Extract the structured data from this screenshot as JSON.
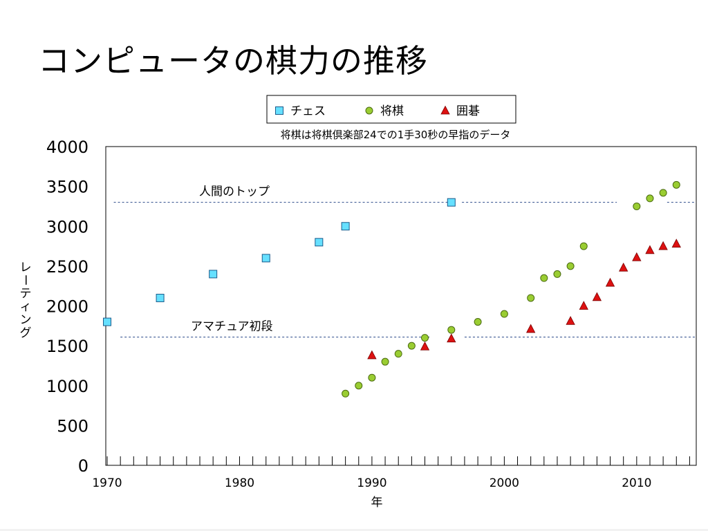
{
  "page": {
    "title": "コンピュータの棋力の推移"
  },
  "chart_data": {
    "type": "scatter",
    "subtitle": "将棋は将棋倶楽部24での1手30秒の早指のデータ",
    "xlabel": "年",
    "ylabel": "レーティング",
    "xlim": [
      1970,
      2014.5
    ],
    "ylim": [
      0,
      4000
    ],
    "yticks": [
      0,
      500,
      1000,
      1500,
      2000,
      2500,
      3000,
      3500,
      4000
    ],
    "ytick_labels": [
      "0",
      "500",
      "1000",
      "1500",
      "2000",
      "2500",
      "3000",
      "3500",
      "4000"
    ],
    "xtick_labels": [
      {
        "value": 1970,
        "label": "1970"
      },
      {
        "value": 1980,
        "label": "1980"
      },
      {
        "value": 1990,
        "label": "1990"
      },
      {
        "value": 2000,
        "label": "2000"
      },
      {
        "value": 2010,
        "label": "2010"
      }
    ],
    "legend_position": "top-center",
    "grid": false,
    "series": [
      {
        "name": "チェス",
        "marker": "square",
        "color": "#66e0ff",
        "points": [
          [
            1970,
            1800
          ],
          [
            1974,
            2100
          ],
          [
            1978,
            2400
          ],
          [
            1982,
            2600
          ],
          [
            1986,
            2800
          ],
          [
            1988,
            3000
          ],
          [
            1996,
            3300
          ]
        ]
      },
      {
        "name": "将棋",
        "marker": "circle",
        "color": "#9acd32",
        "points": [
          [
            1988,
            900
          ],
          [
            1989,
            1000
          ],
          [
            1990,
            1100
          ],
          [
            1991,
            1300
          ],
          [
            1992,
            1400
          ],
          [
            1993,
            1500
          ],
          [
            1994,
            1600
          ],
          [
            1996,
            1700
          ],
          [
            1998,
            1800
          ],
          [
            2000,
            1900
          ],
          [
            2002,
            2100
          ],
          [
            2003,
            2350
          ],
          [
            2004,
            2400
          ],
          [
            2005,
            2500
          ],
          [
            2006,
            2750
          ],
          [
            2010,
            3250
          ],
          [
            2011,
            3350
          ],
          [
            2012,
            3420
          ],
          [
            2013,
            3520
          ]
        ]
      },
      {
        "name": "囲碁",
        "marker": "triangle",
        "color": "#dd1111",
        "points": [
          [
            1990,
            1380
          ],
          [
            1994,
            1490
          ],
          [
            1996,
            1590
          ],
          [
            2002,
            1710
          ],
          [
            2005,
            1810
          ],
          [
            2006,
            2000
          ],
          [
            2007,
            2110
          ],
          [
            2008,
            2290
          ],
          [
            2009,
            2480
          ],
          [
            2010,
            2610
          ],
          [
            2011,
            2700
          ],
          [
            2012,
            2750
          ],
          [
            2013,
            2780
          ]
        ]
      }
    ],
    "reference_lines": [
      {
        "label": "人間のトップ",
        "y": 3300,
        "segments": [
          [
            1970.5,
            1995.8
          ],
          [
            1996.8,
            2008.5
          ],
          [
            2012.3,
            2014.5
          ]
        ]
      },
      {
        "label": "アマチュア初段",
        "y": 1610,
        "segments": [
          [
            1971,
            1994.5
          ],
          [
            1997,
            2014.5
          ]
        ]
      }
    ]
  }
}
